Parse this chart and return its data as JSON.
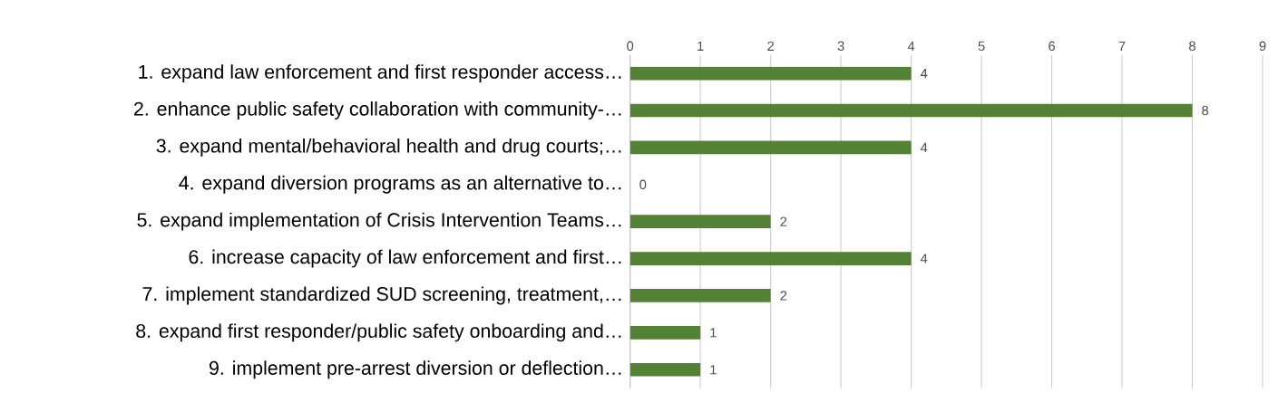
{
  "chart_data": {
    "type": "bar",
    "orientation": "horizontal",
    "categories": [
      "1.    expand law enforcement and first responder access…",
      "2.    enhance public safety collaboration with community-…",
      "3.    expand mental/behavioral health and drug courts;…",
      "4.    expand diversion programs as an alternative to…",
      "5.    expand implementation of Crisis Intervention Teams…",
      "6.    increase capacity of law enforcement and first…",
      "7.    implement standardized SUD screening, treatment,…",
      "8.    expand first responder/public safety onboarding and…",
      "9.    implement pre-arrest diversion or deflection…"
    ],
    "values": [
      4,
      8,
      4,
      0,
      2,
      4,
      2,
      1,
      1
    ],
    "color": "#548235",
    "xlim": [
      0,
      9
    ],
    "xticks": [
      0,
      1,
      2,
      3,
      4,
      5,
      6,
      7,
      8,
      9
    ],
    "grid": "x",
    "data_labels": true
  }
}
